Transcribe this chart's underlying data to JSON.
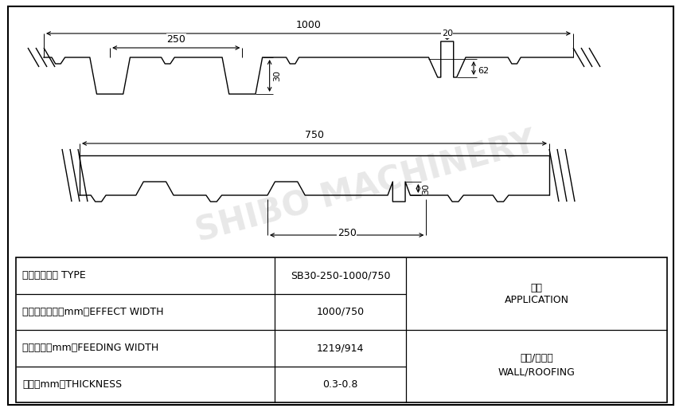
{
  "bg_color": "#ffffff",
  "line_color": "#000000",
  "watermark_text": "SHIBO MACHINERY",
  "watermark_color": "#cccccc",
  "table": {
    "rows": [
      {
        "label": "压型钗板型号 TYPE",
        "value": "SB30-250-1000/750"
      },
      {
        "label": "有效覆盖宽度（mm）EFFECT WIDTH",
        "value": "1000/750"
      },
      {
        "label": "展开宽度（mm）FEEDING WIDTH",
        "value": "1219/914"
      },
      {
        "label": "板厚（mm）THICKNESS",
        "value": "0.3-0.8"
      }
    ],
    "app_label1": "用途",
    "app_label2": "APPLICATION",
    "app_label3": "屋顶/墙面版",
    "app_label4": "WALL/ROOFING"
  },
  "dim_1000": "1000",
  "dim_250_top": "250",
  "dim_30": "30",
  "dim_62": "62",
  "dim_20": "20",
  "dim_750": "750",
  "dim_250_bot": "250",
  "dim_30b": "30"
}
